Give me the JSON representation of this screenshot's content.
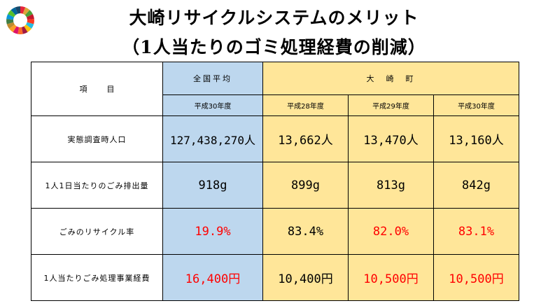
{
  "header": {
    "title": "大崎リサイクルシステムのメリット",
    "subtitle": "（1人当たりのゴミ処理経費の削減）",
    "logo_icon": "sdgs-wheel-icon"
  },
  "table": {
    "item_header": "項目",
    "national_header": "全国平均",
    "town_header": "大　崎　町",
    "years": [
      "平成30年度",
      "平成28年度",
      "平成29年度",
      "平成30年度"
    ],
    "rows": [
      {
        "label": "実態調査時人口",
        "values": [
          "127,438,270人",
          "13,662人",
          "13,470人",
          "13,160人"
        ],
        "red": [
          false,
          false,
          false,
          false
        ]
      },
      {
        "label": "1人1日当たりのごみ排出量",
        "values": [
          "918g",
          "899g",
          "813g",
          "842g"
        ],
        "red": [
          false,
          false,
          false,
          false
        ]
      },
      {
        "label": "ごみのリサイクル率",
        "values": [
          "19.9%",
          "83.4%",
          "82.0%",
          "83.1%"
        ],
        "red": [
          true,
          false,
          true,
          true
        ]
      },
      {
        "label": "1人当たりごみ処理事業経費",
        "values": [
          "16,400円",
          "10,400円",
          "10,500円",
          "10,500円"
        ],
        "red": [
          true,
          false,
          true,
          true
        ]
      }
    ],
    "colors": {
      "national_bg": "#bdd7ee",
      "town_bg": "#ffe699",
      "highlight": "#ff0000"
    }
  }
}
